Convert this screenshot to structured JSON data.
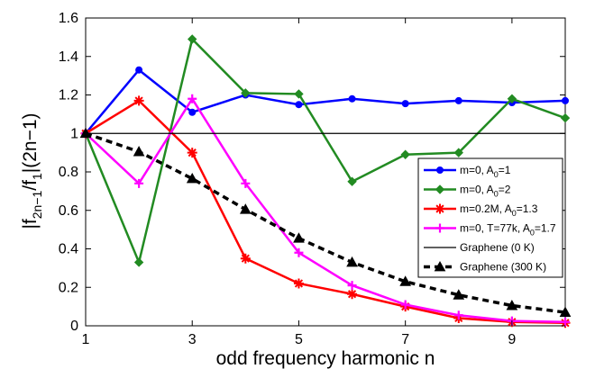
{
  "chart_data": {
    "type": "line",
    "xlabel": "odd frequency harmonic n",
    "ylabel_parts": [
      "|f",
      "2n−1",
      "/f",
      "1",
      "|(2n−1)"
    ],
    "xlim": [
      1,
      10
    ],
    "ylim": [
      0,
      1.6
    ],
    "xticks": [
      1,
      3,
      5,
      7,
      9
    ],
    "xtick_labels": [
      "1",
      "3",
      "5",
      "7",
      "9"
    ],
    "yticks": [
      0,
      0.2,
      0.4,
      0.6,
      0.8,
      1,
      1.2,
      1.4,
      1.6
    ],
    "ytick_labels": [
      "0",
      "0.2",
      "0.4",
      "0.6",
      "0.8",
      "1",
      "1.2",
      "1.4",
      "1.6"
    ],
    "x": [
      1,
      2,
      3,
      4,
      5,
      6,
      7,
      8,
      9,
      10
    ],
    "legend_position": "right",
    "series": [
      {
        "label_parts": [
          "m=0, A",
          "0",
          "=1"
        ],
        "color": "#0000ff",
        "marker": "circle",
        "dash": "solid",
        "values": [
          1.0,
          1.33,
          1.11,
          1.2,
          1.15,
          1.18,
          1.155,
          1.17,
          1.16,
          1.17
        ]
      },
      {
        "label_parts": [
          "m=0, A",
          "0",
          "=2"
        ],
        "color": "#228b22",
        "marker": "diamond",
        "dash": "solid",
        "values": [
          1.0,
          0.33,
          1.49,
          1.21,
          1.205,
          0.75,
          0.89,
          0.9,
          1.18,
          1.08
        ]
      },
      {
        "label_parts": [
          "m=0.2M, A",
          "0",
          "=1.3"
        ],
        "color": "#ff0000",
        "marker": "star",
        "dash": "solid",
        "values": [
          1.0,
          1.17,
          0.9,
          0.35,
          0.22,
          0.165,
          0.1,
          0.04,
          0.02,
          0.015
        ]
      },
      {
        "label_parts": [
          "m=0, T=77k, A",
          "0",
          "=1.7"
        ],
        "color": "#ff00ff",
        "marker": "plus",
        "dash": "solid",
        "values": [
          1.0,
          0.74,
          1.18,
          0.74,
          0.38,
          0.21,
          0.11,
          0.055,
          0.025,
          0.02
        ]
      },
      {
        "label_parts": [
          "Graphene (0 K)",
          "",
          ""
        ],
        "color": "#000000",
        "marker": "none",
        "dash": "solid",
        "values": [
          1,
          1,
          1,
          1,
          1,
          1,
          1,
          1,
          1,
          1
        ]
      },
      {
        "label_parts": [
          "Graphene (300 K)",
          "",
          ""
        ],
        "color": "#000000",
        "marker": "triangle",
        "dash": "dashed",
        "values": [
          1.0,
          0.905,
          0.765,
          0.605,
          0.455,
          0.33,
          0.23,
          0.16,
          0.105,
          0.07
        ]
      }
    ]
  }
}
